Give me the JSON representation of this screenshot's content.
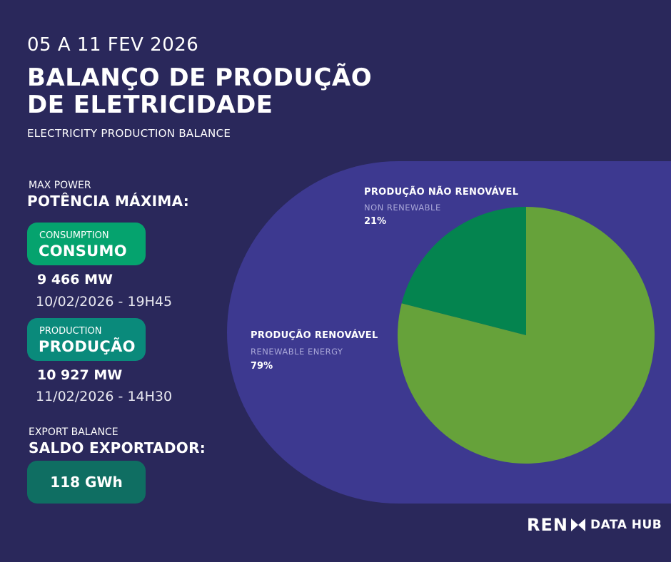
{
  "header": {
    "week": "05 A 11 FEV 2026",
    "title_line1": "BALANÇO DE PRODUÇÃO",
    "title_line2": "DE ELETRICIDADE",
    "subtitle": "ELECTRICITY PRODUCTION BALANCE"
  },
  "max_power": {
    "label_en": "MAX POWER",
    "label_pt": "POTÊNCIA MÁXIMA:",
    "consumption": {
      "label_en": "CONSUMPTION",
      "label_pt": "CONSUMO",
      "value": "9 466 MW",
      "datetime": "10/02/2026 - 19H45"
    },
    "production": {
      "label_en": "PRODUCTION",
      "label_pt": "PRODUÇÃO",
      "value": "10 927 MW",
      "datetime": "11/02/2026 - 14H30"
    }
  },
  "export_balance": {
    "label_en": "EXPORT BALANCE",
    "label_pt": "SALDO EXPORTADOR:",
    "value": "118 GWh"
  },
  "chart_data": {
    "type": "pie",
    "slices": [
      {
        "label": "PRODUÇÃO RENOVÁVEL",
        "sublabel": "RENEWABLE ENERGY",
        "value": 79,
        "value_label": "79%",
        "color": "#66a23a"
      },
      {
        "label": "PRODUÇÃO NÃO RENOVÁVEL",
        "sublabel": "NON RENEWABLE",
        "value": 21,
        "value_label": "21%",
        "color": "#04844f"
      }
    ]
  },
  "colors": {
    "background": "#2a285b",
    "panel": "#3d3990",
    "consumo_pill": "#05a36e",
    "producao_pill": "#0a8a7b",
    "export_pill": "#0f6e62"
  },
  "logo": {
    "brand": "REN",
    "icon": "bowtie-logo-icon",
    "suffix": "DATA HUB"
  }
}
